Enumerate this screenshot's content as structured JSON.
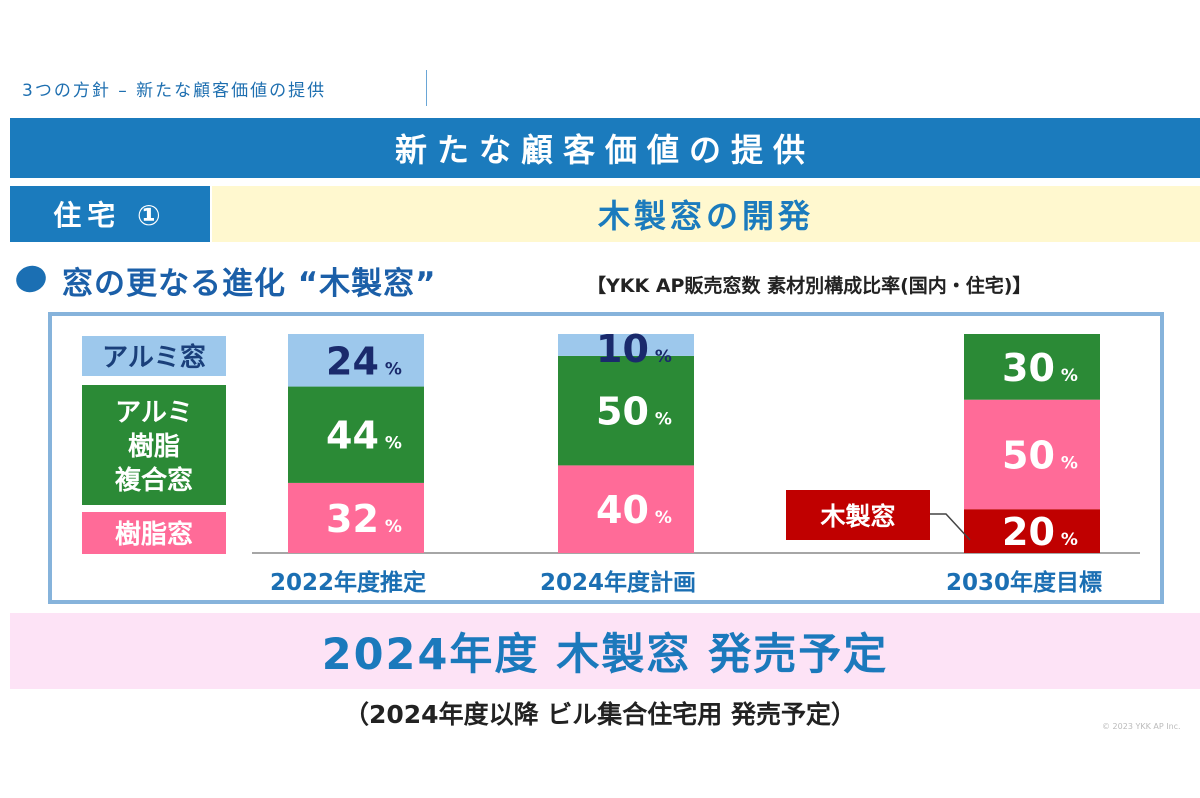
{
  "header": {
    "breadcrumb": "3つの方針 – 新たな顧客価値の提供",
    "main_title": "新たな顧客価値の提供",
    "section_label": "住宅 ①",
    "section_title": "木製窓の開発"
  },
  "subheading": {
    "title": "窓の更なる進化 “木製窓”",
    "caption": "【YKK AP販売窓数 素材別構成比率(国内・住宅)】"
  },
  "colors": {
    "aluminum": "#9dc8ec",
    "composite": "#2b8a36",
    "resin": "#ff6b98",
    "wood": "#c00000",
    "accent": "#1b7bbd"
  },
  "chart_data": {
    "type": "bar",
    "stacked": true,
    "unit": "%",
    "categories": [
      "2022年度推定",
      "2024年度計画",
      "2030年度目標"
    ],
    "series": [
      {
        "name": "木製窓",
        "values": [
          0,
          0,
          20
        ]
      },
      {
        "name": "樹脂窓",
        "values": [
          32,
          40,
          50
        ]
      },
      {
        "name": "アルミ樹脂複合窓",
        "values": [
          44,
          50,
          30
        ]
      },
      {
        "name": "アルミ窓",
        "values": [
          24,
          10,
          0
        ]
      }
    ],
    "legend": [
      {
        "label": "アルミ窓"
      },
      {
        "label": "アルミ\n樹脂\n複合窓"
      },
      {
        "label": "樹脂窓"
      }
    ],
    "legend_position": "left",
    "callout": "木製窓",
    "ylim": [
      0,
      100
    ]
  },
  "release": {
    "title": "2024年度 木製窓 発売予定",
    "note": "（2024年度以降 ビル集合住宅用 発売予定）"
  },
  "copyright": "© 2023 YKK AP Inc."
}
